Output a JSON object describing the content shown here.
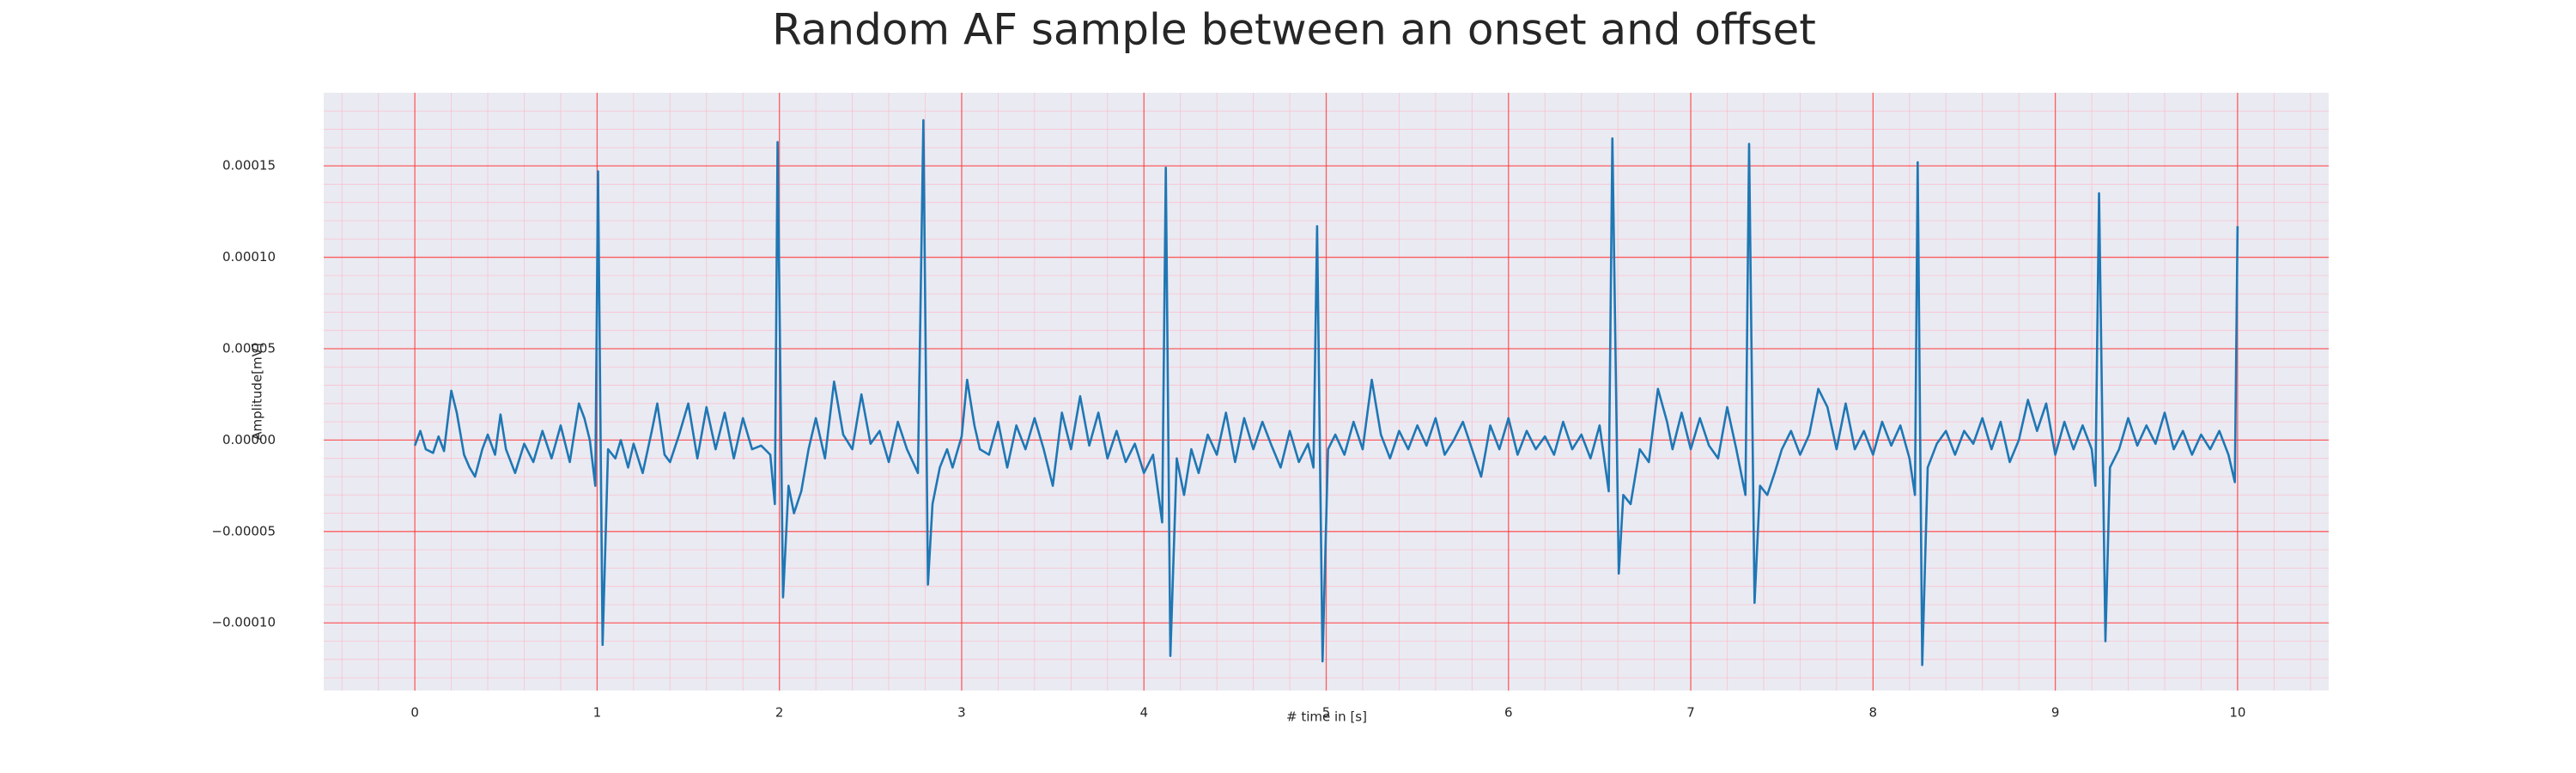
{
  "chart_data": {
    "type": "line",
    "title": "Random AF sample between an onset and offset",
    "x_label": "# time in [s]",
    "y_label": "Amplitude[mV]",
    "color": "#1f77b4",
    "xlim": [
      -0.5,
      10.5
    ],
    "ylim": [
      -0.000137,
      0.00019
    ],
    "xticks": [
      0,
      1,
      2,
      3,
      4,
      5,
      6,
      7,
      8,
      9,
      10
    ],
    "yticks": [
      {
        "value": -0.0001,
        "label": "−0.00010"
      },
      {
        "value": -5e-05,
        "label": "−0.00005"
      },
      {
        "value": 0,
        "label": "0.00000"
      },
      {
        "value": 5e-05,
        "label": "0.00005"
      },
      {
        "value": 0.0001,
        "label": "0.00010"
      },
      {
        "value": 0.00015,
        "label": "0.00015"
      }
    ],
    "grid": true,
    "minor_grid": true,
    "x": [
      0,
      0.03,
      0.06,
      0.1,
      0.13,
      0.16,
      0.2,
      0.23,
      0.27,
      0.3,
      0.33,
      0.37,
      0.4,
      0.44,
      0.47,
      0.5,
      0.55,
      0.6,
      0.65,
      0.7,
      0.75,
      0.8,
      0.85,
      0.9,
      0.93,
      0.96,
      0.99,
      1.005,
      1.03,
      1.06,
      1.1,
      1.13,
      1.17,
      1.2,
      1.25,
      1.3,
      1.33,
      1.37,
      1.4,
      1.45,
      1.5,
      1.55,
      1.6,
      1.65,
      1.7,
      1.75,
      1.8,
      1.85,
      1.9,
      1.95,
      1.975,
      1.99,
      2.02,
      2.05,
      2.08,
      2.12,
      2.16,
      2.2,
      2.25,
      2.3,
      2.35,
      2.4,
      2.45,
      2.5,
      2.55,
      2.6,
      2.65,
      2.7,
      2.76,
      2.79,
      2.815,
      2.84,
      2.88,
      2.92,
      2.95,
      3.0,
      3.03,
      3.07,
      3.1,
      3.15,
      3.2,
      3.25,
      3.3,
      3.35,
      3.4,
      3.45,
      3.5,
      3.55,
      3.6,
      3.65,
      3.7,
      3.75,
      3.8,
      3.85,
      3.9,
      3.95,
      4.0,
      4.05,
      4.1,
      4.12,
      4.145,
      4.18,
      4.22,
      4.26,
      4.3,
      4.35,
      4.4,
      4.45,
      4.5,
      4.55,
      4.6,
      4.65,
      4.7,
      4.75,
      4.8,
      4.85,
      4.9,
      4.93,
      4.95,
      4.98,
      5.01,
      5.05,
      5.1,
      5.15,
      5.2,
      5.25,
      5.3,
      5.35,
      5.4,
      5.45,
      5.5,
      5.55,
      5.6,
      5.65,
      5.7,
      5.75,
      5.8,
      5.85,
      5.9,
      5.95,
      6.0,
      6.05,
      6.1,
      6.15,
      6.2,
      6.25,
      6.3,
      6.35,
      6.4,
      6.45,
      6.5,
      6.55,
      6.57,
      6.605,
      6.63,
      6.67,
      6.72,
      6.77,
      6.82,
      6.87,
      6.9,
      6.95,
      7.0,
      7.05,
      7.1,
      7.15,
      7.2,
      7.25,
      7.3,
      7.32,
      7.35,
      7.38,
      7.42,
      7.46,
      7.5,
      7.55,
      7.6,
      7.65,
      7.7,
      7.75,
      7.8,
      7.85,
      7.9,
      7.95,
      8.0,
      8.05,
      8.1,
      8.15,
      8.2,
      8.23,
      8.245,
      8.27,
      8.3,
      8.35,
      8.4,
      8.45,
      8.5,
      8.55,
      8.6,
      8.65,
      8.7,
      8.75,
      8.8,
      8.85,
      8.9,
      8.95,
      9.0,
      9.05,
      9.1,
      9.15,
      9.2,
      9.22,
      9.24,
      9.275,
      9.3,
      9.35,
      9.4,
      9.45,
      9.5,
      9.55,
      9.6,
      9.65,
      9.7,
      9.75,
      9.8,
      9.85,
      9.9,
      9.95,
      9.985,
      10.0
    ],
    "values": [
      -3e-06,
      5e-06,
      -5e-06,
      -7e-06,
      2e-06,
      -6e-06,
      2.7e-05,
      1.5e-05,
      -8e-06,
      -1.5e-05,
      -2e-05,
      -5e-06,
      3e-06,
      -8e-06,
      1.4e-05,
      -5e-06,
      -1.8e-05,
      -2e-06,
      -1.2e-05,
      5e-06,
      -1e-05,
      8e-06,
      -1.2e-05,
      2e-05,
      1.2e-05,
      0,
      -2.5e-05,
      0.000147,
      -0.000112,
      -5e-06,
      -1e-05,
      0,
      -1.5e-05,
      -2e-06,
      -1.8e-05,
      5e-06,
      2e-05,
      -8e-06,
      -1.2e-05,
      3e-06,
      2e-05,
      -1e-05,
      1.8e-05,
      -5e-06,
      1.5e-05,
      -1e-05,
      1.2e-05,
      -5e-06,
      -3e-06,
      -8e-06,
      -3.5e-05,
      0.000163,
      -8.6e-05,
      -2.5e-05,
      -4e-05,
      -2.8e-05,
      -5e-06,
      1.2e-05,
      -1e-05,
      3.2e-05,
      3e-06,
      -5e-06,
      2.5e-05,
      -2e-06,
      5e-06,
      -1.2e-05,
      1e-05,
      -5e-06,
      -1.8e-05,
      0.000175,
      -7.9e-05,
      -3.5e-05,
      -1.5e-05,
      -5e-06,
      -1.5e-05,
      2e-06,
      3.3e-05,
      8e-06,
      -5e-06,
      -8e-06,
      1e-05,
      -1.5e-05,
      8e-06,
      -5e-06,
      1.2e-05,
      -5e-06,
      -2.5e-05,
      1.5e-05,
      -5e-06,
      2.4e-05,
      -3e-06,
      1.5e-05,
      -1e-05,
      5e-06,
      -1.2e-05,
      -2e-06,
      -1.8e-05,
      -8e-06,
      -4.5e-05,
      0.000149,
      -0.000118,
      -1e-05,
      -3e-05,
      -5e-06,
      -1.8e-05,
      3e-06,
      -8e-06,
      1.5e-05,
      -1.2e-05,
      1.2e-05,
      -5e-06,
      1e-05,
      -3e-06,
      -1.5e-05,
      5e-06,
      -1.2e-05,
      -2e-06,
      -1.5e-05,
      0.000117,
      -0.000121,
      -5e-06,
      3e-06,
      -8e-06,
      1e-05,
      -5e-06,
      3.3e-05,
      3e-06,
      -1e-05,
      5e-06,
      -5e-06,
      8e-06,
      -3e-06,
      1.2e-05,
      -8e-06,
      0,
      1e-05,
      -5e-06,
      -2e-05,
      8e-06,
      -5e-06,
      1.2e-05,
      -8e-06,
      5e-06,
      -5e-06,
      2e-06,
      -8e-06,
      1e-05,
      -5e-06,
      3e-06,
      -1e-05,
      8e-06,
      -2.8e-05,
      0.000165,
      -7.3e-05,
      -3e-05,
      -3.5e-05,
      -5e-06,
      -1.2e-05,
      2.8e-05,
      1e-05,
      -5e-06,
      1.5e-05,
      -5e-06,
      1.2e-05,
      -3e-06,
      -1e-05,
      1.8e-05,
      -5e-06,
      -3e-05,
      0.000162,
      -8.9e-05,
      -2.5e-05,
      -3e-05,
      -1.8e-05,
      -5e-06,
      5e-06,
      -8e-06,
      3e-06,
      2.8e-05,
      1.8e-05,
      -5e-06,
      2e-05,
      -5e-06,
      5e-06,
      -8e-06,
      1e-05,
      -3e-06,
      8e-06,
      -1e-05,
      -3e-05,
      0.000152,
      -0.000123,
      -1.5e-05,
      -2e-06,
      5e-06,
      -8e-06,
      5e-06,
      -2e-06,
      1.2e-05,
      -5e-06,
      1e-05,
      -1.2e-05,
      0,
      2.2e-05,
      5e-06,
      2e-05,
      -8e-06,
      1e-05,
      -5e-06,
      8e-06,
      -5e-06,
      -2.5e-05,
      0.000135,
      -0.00011,
      -1.5e-05,
      -5e-06,
      1.2e-05,
      -3e-06,
      8e-06,
      -2e-06,
      1.5e-05,
      -5e-06,
      5e-06,
      -8e-06,
      3e-06,
      -5e-06,
      5e-06,
      -8e-06,
      -2.3e-05,
      0.000117
    ]
  }
}
